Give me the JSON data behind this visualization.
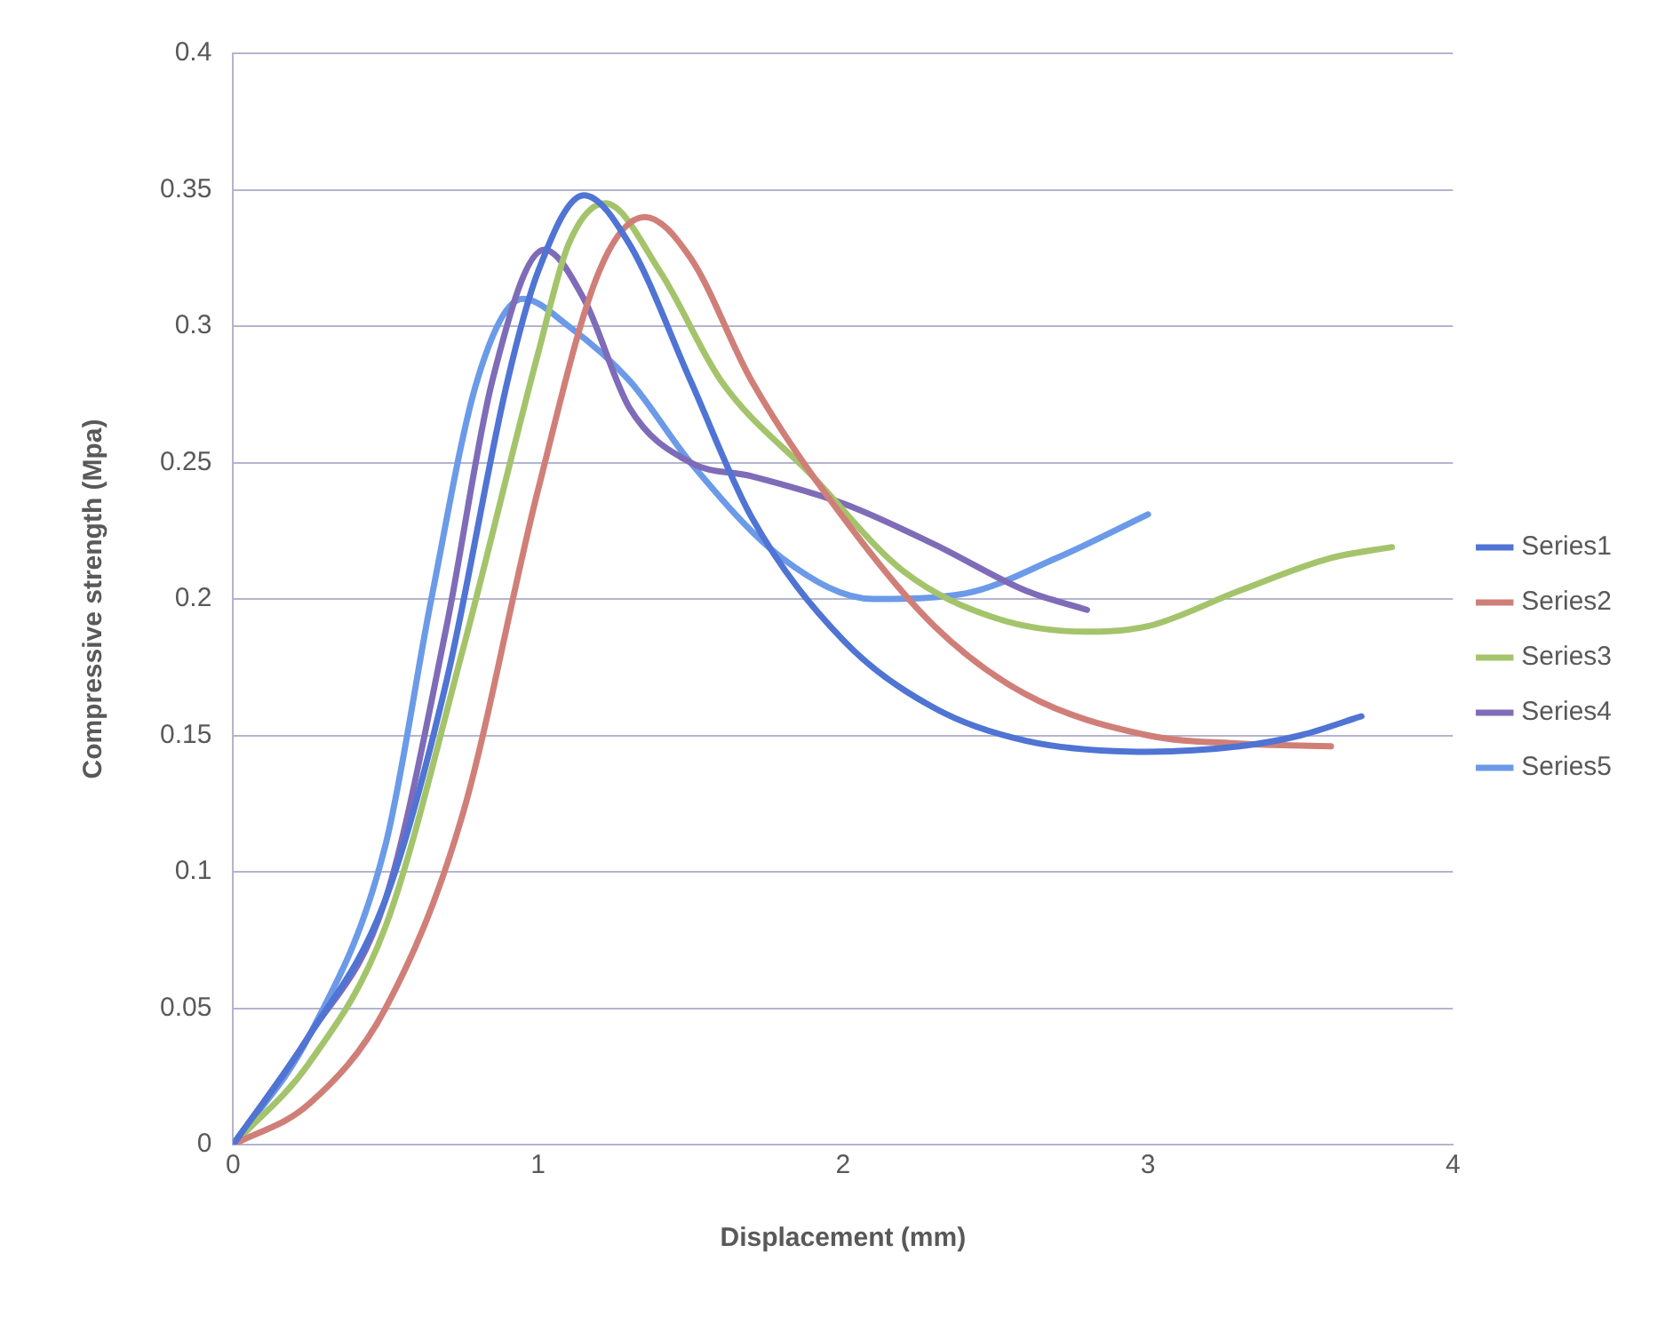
{
  "chart_data": {
    "type": "line",
    "xlabel": "Displacement (mm)",
    "ylabel": "Compressive strength (Mpa)",
    "xlim": [
      0,
      4
    ],
    "xticks": [
      0,
      1,
      2,
      3,
      4
    ],
    "ylim": [
      0,
      0.4
    ],
    "yticks": [
      0,
      0.05,
      0.1,
      0.15,
      0.2,
      0.25,
      0.3,
      0.35,
      0.4
    ],
    "grid": "y",
    "legend": "right",
    "marker": "none",
    "line_style": "solid",
    "series": [
      {
        "name": "Series1",
        "color": "#4f74d4",
        "x": [
          0,
          0.25,
          0.5,
          0.7,
          0.9,
          1.0,
          1.15,
          1.3,
          1.5,
          1.7,
          2.0,
          2.3,
          2.6,
          3.0,
          3.3,
          3.5,
          3.7
        ],
        "values": [
          0,
          0.04,
          0.09,
          0.17,
          0.28,
          0.32,
          0.348,
          0.33,
          0.28,
          0.23,
          0.185,
          0.16,
          0.148,
          0.144,
          0.146,
          0.15,
          0.157
        ]
      },
      {
        "name": "Series2",
        "color": "#d07f78",
        "x": [
          0,
          0.25,
          0.5,
          0.75,
          1.0,
          1.2,
          1.35,
          1.5,
          1.7,
          2.0,
          2.3,
          2.6,
          3.0,
          3.3,
          3.6
        ],
        "values": [
          0,
          0.015,
          0.05,
          0.12,
          0.24,
          0.32,
          0.34,
          0.325,
          0.28,
          0.23,
          0.19,
          0.165,
          0.15,
          0.147,
          0.146
        ]
      },
      {
        "name": "Series3",
        "color": "#a4c46c",
        "x": [
          0,
          0.25,
          0.5,
          0.75,
          1.0,
          1.1,
          1.22,
          1.4,
          1.6,
          1.9,
          2.2,
          2.5,
          2.8,
          3.0,
          3.3,
          3.6,
          3.8
        ],
        "values": [
          0,
          0.03,
          0.08,
          0.18,
          0.29,
          0.33,
          0.345,
          0.32,
          0.28,
          0.245,
          0.21,
          0.193,
          0.188,
          0.19,
          0.203,
          0.215,
          0.219
        ]
      },
      {
        "name": "Series4",
        "color": "#7f6cb8",
        "x": [
          0,
          0.25,
          0.5,
          0.7,
          0.85,
          1.02,
          1.15,
          1.3,
          1.5,
          1.7,
          2.0,
          2.3,
          2.6,
          2.8
        ],
        "values": [
          0,
          0.04,
          0.09,
          0.19,
          0.28,
          0.328,
          0.31,
          0.27,
          0.25,
          0.245,
          0.235,
          0.22,
          0.203,
          0.196
        ]
      },
      {
        "name": "Series5",
        "color": "#6b9ae8",
        "x": [
          0,
          0.25,
          0.5,
          0.65,
          0.8,
          0.95,
          1.1,
          1.3,
          1.5,
          1.8,
          2.1,
          2.4,
          2.7,
          3.0
        ],
        "values": [
          0,
          0.04,
          0.11,
          0.2,
          0.28,
          0.31,
          0.3,
          0.28,
          0.25,
          0.215,
          0.2,
          0.202,
          0.215,
          0.231
        ]
      }
    ]
  }
}
